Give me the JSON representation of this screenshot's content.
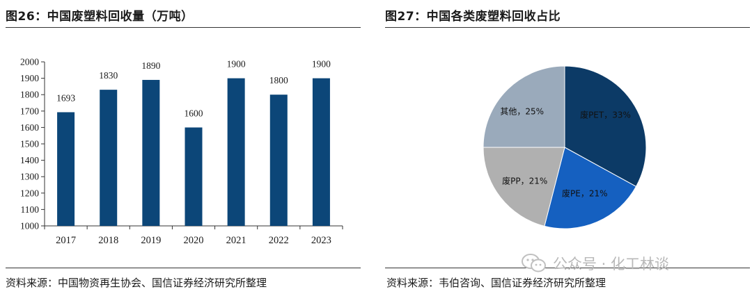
{
  "left": {
    "title": "图26：中国废塑料回收量（万吨）",
    "source": "资料来源：中国物资再生协会、国信证券经济研究所整理"
  },
  "right": {
    "title": "图27：中国各类废塑料回收占比",
    "source": "资料来源：韦伯咨询、国信证券经济研究所整理"
  },
  "watermark": {
    "text": "公众号 · 化工林谈",
    "icon": "wechat-icon"
  },
  "colors": {
    "bar": "#0c4678",
    "pie_pet": "#0c3a66",
    "pie_pe": "#1560c0",
    "pie_pp": "#b0b0b0",
    "pie_other": "#9aaabb"
  },
  "chart_data": [
    {
      "type": "bar",
      "categories": [
        "2017",
        "2018",
        "2019",
        "2020",
        "2021",
        "2022",
        "2023"
      ],
      "values": [
        1693,
        1830,
        1890,
        1600,
        1900,
        1800,
        1900
      ],
      "data_labels": [
        "1693",
        "1830",
        "1890",
        "1600",
        "1900",
        "1800",
        "1900"
      ],
      "title": "图26：中国废塑料回收量（万吨）",
      "ylim": [
        1000,
        2000
      ],
      "yticks": [
        1000,
        1100,
        1200,
        1300,
        1400,
        1500,
        1600,
        1700,
        1800,
        1900,
        2000
      ],
      "grid": false,
      "legend": "none"
    },
    {
      "type": "pie",
      "title": "图27：中国各类废塑料回收占比",
      "slices": [
        {
          "label": "废PET，33%",
          "value": 33
        },
        {
          "label": "废PE，21%",
          "value": 21
        },
        {
          "label": "废PP，21%",
          "value": 21
        },
        {
          "label": "其他，25%",
          "value": 25
        }
      ],
      "legend": "none"
    }
  ]
}
